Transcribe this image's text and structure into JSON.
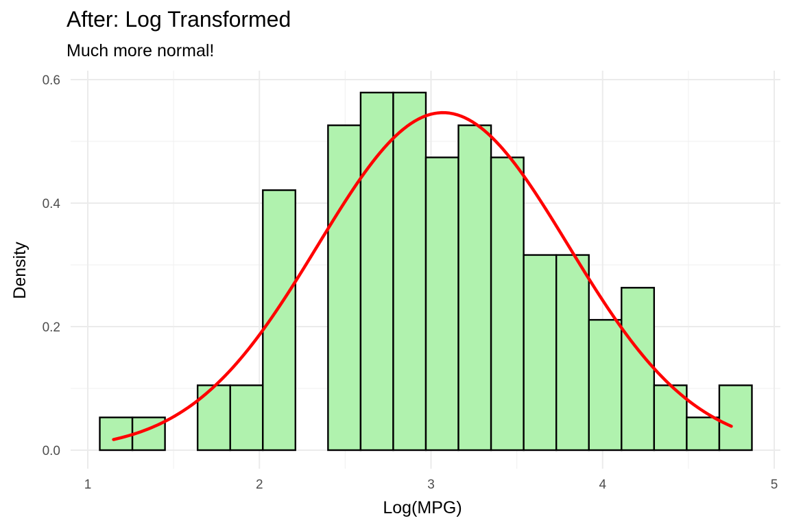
{
  "chart_data": {
    "type": "bar",
    "title": "After: Log Transformed",
    "subtitle": "Much more normal!",
    "xlabel": "Log(MPG)",
    "ylabel": "Density",
    "xlim": [
      1,
      5
    ],
    "ylim": [
      0,
      0.6
    ],
    "x_ticks": [
      1,
      2,
      3,
      4,
      5
    ],
    "x_tick_labels": [
      "1",
      "2",
      "3",
      "4",
      "5"
    ],
    "y_ticks": [
      0.0,
      0.2,
      0.4,
      0.6
    ],
    "y_tick_labels": [
      "0.0",
      "0.2",
      "0.4",
      "0.6"
    ],
    "grid": true,
    "bin_edges": [
      1.07,
      1.26,
      1.45,
      1.64,
      1.83,
      2.02,
      2.21,
      2.4,
      2.59,
      2.78,
      2.97,
      3.16,
      3.35,
      3.54,
      3.73,
      3.92,
      4.11,
      4.3,
      4.49,
      4.68,
      4.87
    ],
    "values": [
      0.053,
      0.053,
      0.0,
      0.105,
      0.105,
      0.421,
      0.0,
      0.526,
      0.579,
      0.579,
      0.474,
      0.526,
      0.474,
      0.316,
      0.316,
      0.211,
      0.263,
      0.105,
      0.053,
      0.105
    ],
    "bar_fill": "#b0f2ae",
    "bar_stroke": "#000000",
    "density_curve": {
      "type": "normal",
      "mean": 3.07,
      "sd": 0.73,
      "x_range": [
        1.15,
        4.75
      ],
      "color": "#ff0000"
    }
  }
}
